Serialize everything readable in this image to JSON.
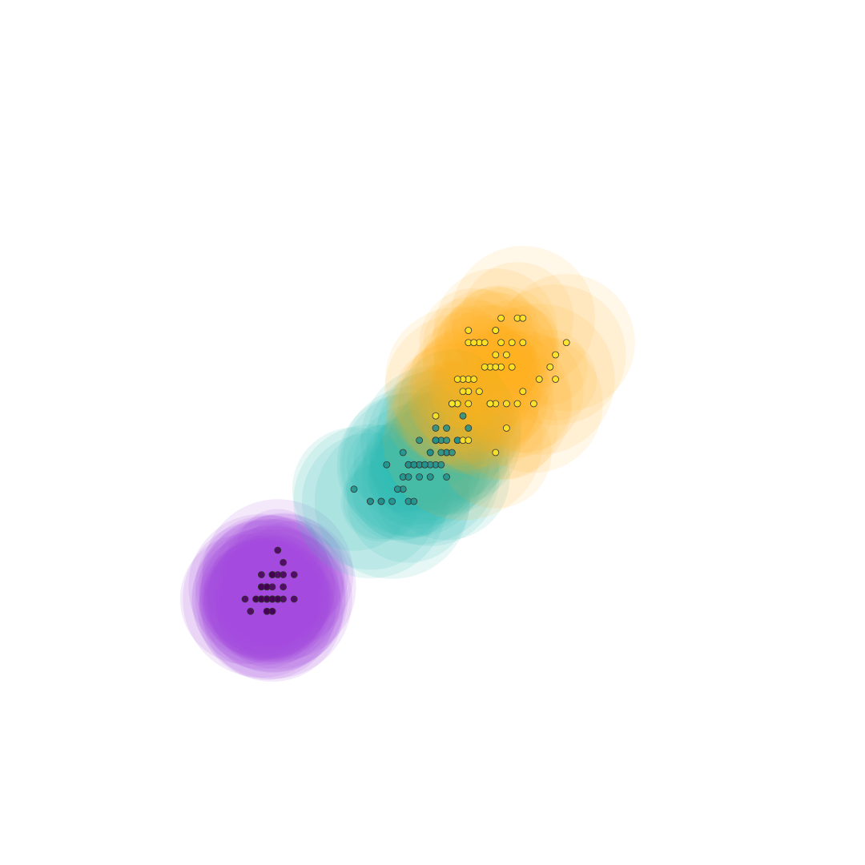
{
  "chart_data": {
    "type": "scatter",
    "title": "",
    "xlabel": "",
    "ylabel": "",
    "axes_visible": false,
    "grid": false,
    "legend": "none",
    "x_unit_note": "",
    "xlim": [
      0,
      8
    ],
    "ylim": [
      -0.5,
      3.0
    ],
    "point_edge_color": "#333333",
    "series": [
      {
        "point_color": "#440154",
        "halo_color": "#a84ce0",
        "halo_alpha": 0.12,
        "points": [
          [
            1.4,
            0.2
          ],
          [
            1.4,
            0.2
          ],
          [
            1.3,
            0.2
          ],
          [
            1.5,
            0.2
          ],
          [
            1.4,
            0.2
          ],
          [
            1.7,
            0.4
          ],
          [
            1.4,
            0.3
          ],
          [
            1.5,
            0.2
          ],
          [
            1.4,
            0.2
          ],
          [
            1.5,
            0.1
          ],
          [
            1.5,
            0.2
          ],
          [
            1.6,
            0.2
          ],
          [
            1.4,
            0.1
          ],
          [
            1.1,
            0.1
          ],
          [
            1.2,
            0.2
          ],
          [
            1.5,
            0.4
          ],
          [
            1.3,
            0.4
          ],
          [
            1.4,
            0.3
          ],
          [
            1.7,
            0.3
          ],
          [
            1.5,
            0.3
          ],
          [
            1.7,
            0.2
          ],
          [
            1.5,
            0.4
          ],
          [
            1.0,
            0.2
          ],
          [
            1.7,
            0.5
          ],
          [
            1.9,
            0.2
          ],
          [
            1.6,
            0.2
          ],
          [
            1.6,
            0.4
          ],
          [
            1.5,
            0.2
          ],
          [
            1.4,
            0.2
          ],
          [
            1.6,
            0.2
          ],
          [
            1.6,
            0.2
          ],
          [
            1.5,
            0.4
          ],
          [
            1.5,
            0.1
          ],
          [
            1.4,
            0.2
          ],
          [
            1.5,
            0.2
          ],
          [
            1.2,
            0.2
          ],
          [
            1.3,
            0.2
          ],
          [
            1.4,
            0.1
          ],
          [
            1.3,
            0.2
          ],
          [
            1.5,
            0.2
          ],
          [
            1.3,
            0.3
          ],
          [
            1.3,
            0.3
          ],
          [
            1.3,
            0.2
          ],
          [
            1.6,
            0.6
          ],
          [
            1.9,
            0.4
          ],
          [
            1.4,
            0.3
          ],
          [
            1.6,
            0.2
          ],
          [
            1.4,
            0.2
          ],
          [
            1.5,
            0.2
          ],
          [
            1.4,
            0.2
          ]
        ]
      },
      {
        "point_color": "#21908c",
        "halo_color": "#34c0b6",
        "halo_alpha": 0.12,
        "points": [
          [
            4.7,
            1.4
          ],
          [
            4.5,
            1.5
          ],
          [
            4.9,
            1.5
          ],
          [
            4.0,
            1.3
          ],
          [
            4.6,
            1.5
          ],
          [
            4.5,
            1.3
          ],
          [
            4.7,
            1.6
          ],
          [
            3.3,
            1.0
          ],
          [
            4.6,
            1.3
          ],
          [
            3.9,
            1.4
          ],
          [
            3.5,
            1.0
          ],
          [
            4.2,
            1.5
          ],
          [
            4.0,
            1.0
          ],
          [
            4.7,
            1.4
          ],
          [
            3.6,
            1.3
          ],
          [
            4.4,
            1.4
          ],
          [
            4.5,
            1.5
          ],
          [
            4.1,
            1.0
          ],
          [
            4.5,
            1.5
          ],
          [
            3.9,
            1.1
          ],
          [
            4.8,
            1.8
          ],
          [
            4.0,
            1.3
          ],
          [
            4.9,
            1.5
          ],
          [
            4.7,
            1.2
          ],
          [
            4.3,
            1.3
          ],
          [
            4.4,
            1.4
          ],
          [
            4.8,
            1.4
          ],
          [
            5.0,
            1.7
          ],
          [
            4.5,
            1.5
          ],
          [
            3.5,
            1.0
          ],
          [
            3.8,
            1.1
          ],
          [
            3.7,
            1.0
          ],
          [
            3.9,
            1.2
          ],
          [
            5.1,
            1.6
          ],
          [
            4.5,
            1.5
          ],
          [
            4.5,
            1.6
          ],
          [
            4.7,
            1.5
          ],
          [
            4.4,
            1.3
          ],
          [
            4.1,
            1.3
          ],
          [
            4.0,
            1.3
          ],
          [
            4.4,
            1.2
          ],
          [
            4.6,
            1.4
          ],
          [
            4.0,
            1.2
          ],
          [
            3.3,
            1.0
          ],
          [
            4.2,
            1.3
          ],
          [
            4.2,
            1.2
          ],
          [
            4.2,
            1.3
          ],
          [
            4.3,
            1.3
          ],
          [
            3.0,
            1.1
          ],
          [
            4.1,
            1.3
          ]
        ]
      },
      {
        "point_color": "#fde725",
        "halo_color": "#ffad1a",
        "halo_alpha": 0.1,
        "points": [
          [
            6.0,
            2.5
          ],
          [
            5.1,
            1.9
          ],
          [
            5.9,
            2.1
          ],
          [
            5.6,
            1.8
          ],
          [
            5.8,
            2.2
          ],
          [
            6.6,
            2.1
          ],
          [
            4.5,
            1.7
          ],
          [
            6.3,
            1.8
          ],
          [
            5.8,
            1.8
          ],
          [
            6.1,
            2.5
          ],
          [
            5.1,
            2.0
          ],
          [
            5.3,
            1.9
          ],
          [
            5.5,
            2.1
          ],
          [
            5.0,
            2.0
          ],
          [
            5.1,
            2.4
          ],
          [
            5.3,
            2.3
          ],
          [
            5.5,
            1.8
          ],
          [
            6.7,
            2.2
          ],
          [
            6.9,
            2.3
          ],
          [
            5.0,
            1.5
          ],
          [
            5.7,
            2.3
          ],
          [
            4.9,
            2.0
          ],
          [
            6.7,
            2.0
          ],
          [
            4.9,
            1.8
          ],
          [
            5.7,
            2.1
          ],
          [
            6.0,
            1.8
          ],
          [
            4.8,
            1.8
          ],
          [
            4.9,
            1.8
          ],
          [
            5.6,
            2.1
          ],
          [
            5.8,
            1.6
          ],
          [
            6.1,
            1.9
          ],
          [
            6.4,
            2.0
          ],
          [
            5.6,
            2.2
          ],
          [
            5.1,
            1.5
          ],
          [
            5.6,
            1.4
          ],
          [
            6.1,
            2.3
          ],
          [
            5.6,
            2.4
          ],
          [
            5.5,
            1.8
          ],
          [
            4.8,
            1.8
          ],
          [
            5.4,
            2.1
          ],
          [
            5.6,
            2.4
          ],
          [
            5.1,
            2.3
          ],
          [
            5.1,
            1.9
          ],
          [
            5.9,
            2.3
          ],
          [
            5.7,
            2.5
          ],
          [
            5.2,
            2.3
          ],
          [
            5.0,
            1.9
          ],
          [
            5.2,
            2.0
          ],
          [
            5.4,
            2.3
          ],
          [
            5.1,
            1.8
          ]
        ]
      }
    ]
  }
}
